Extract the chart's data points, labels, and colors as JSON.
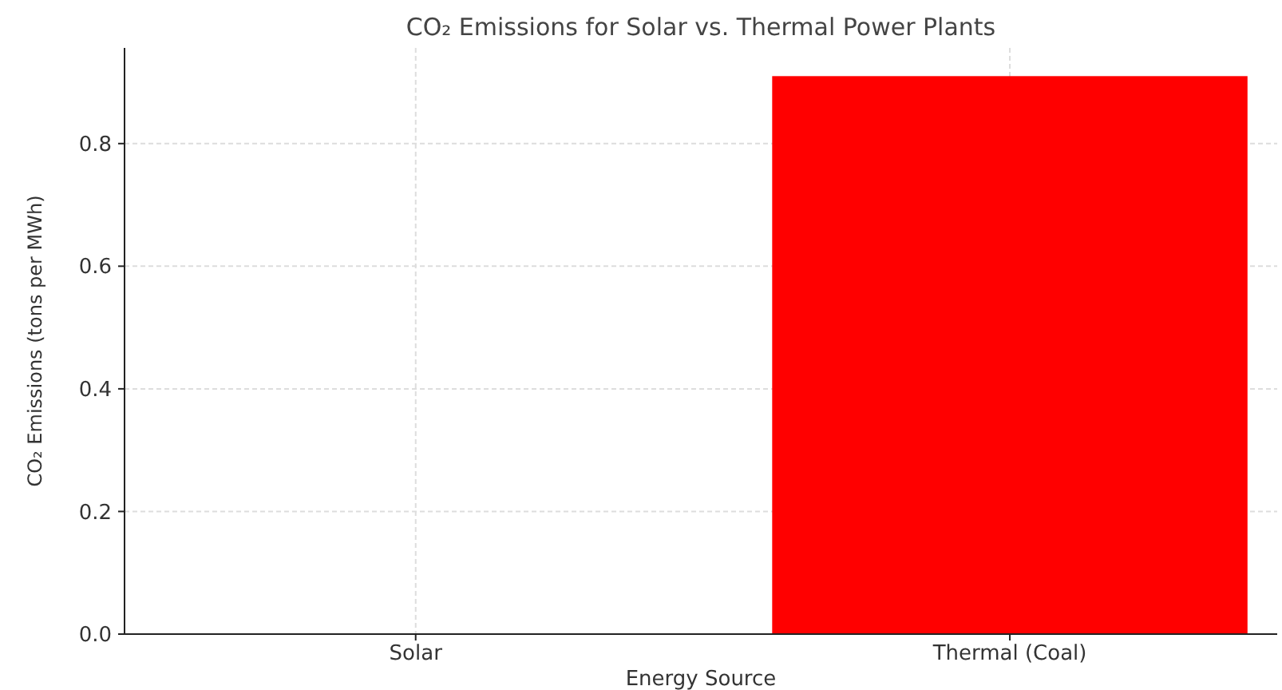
{
  "chart_data": {
    "type": "bar",
    "title": "CO₂ Emissions for Solar vs. Thermal Power Plants",
    "xlabel": "Energy Source",
    "ylabel": "CO₂ Emissions (tons per MWh)",
    "categories": [
      "Solar",
      "Thermal (Coal)"
    ],
    "values": [
      0,
      0.91
    ],
    "color": "#ff0000",
    "ylim": [
      0,
      0.956
    ],
    "yticks": [
      {
        "value": 0,
        "label": "0.0"
      },
      {
        "value": 0.2,
        "label": "0.2"
      },
      {
        "value": 0.4,
        "label": "0.4"
      },
      {
        "value": 0.6,
        "label": "0.6"
      },
      {
        "value": 0.8,
        "label": "0.8"
      }
    ],
    "grid": true
  }
}
